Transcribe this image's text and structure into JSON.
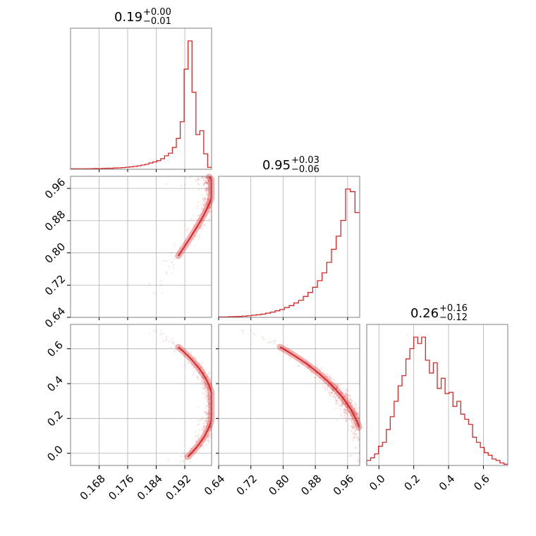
{
  "chart_data": {
    "type": "corner",
    "color": "#d62728",
    "grid": true,
    "parameters": [
      {
        "title_value": "0.19",
        "title_plus": "+0.00",
        "title_minus": "−0.01",
        "range": [
          0.16,
          0.1995
        ],
        "ticks": [
          0.168,
          0.176,
          0.184,
          0.192
        ],
        "tick_labels": [
          "0.168",
          "0.176",
          "0.184",
          "0.192"
        ]
      },
      {
        "title_value": "0.95",
        "title_plus": "+0.03",
        "title_minus": "−0.06",
        "range": [
          0.64,
          0.99
        ],
        "ticks": [
          0.64,
          0.72,
          0.8,
          0.88,
          0.96
        ],
        "tick_labels": [
          "0.64",
          "0.72",
          "0.80",
          "0.88",
          "0.96"
        ]
      },
      {
        "title_value": "0.26",
        "title_plus": "+0.16",
        "title_minus": "−0.12",
        "range": [
          -0.07,
          0.74
        ],
        "ticks": [
          0.0,
          0.2,
          0.4,
          0.6
        ],
        "tick_labels": [
          "0.0",
          "0.2",
          "0.4",
          "0.6"
        ]
      }
    ],
    "histograms": [
      {
        "param": 0,
        "values": [
          0.4,
          0.4,
          0.3,
          0.4,
          0.4,
          0.5,
          0.6,
          0.5,
          0.7,
          0.8,
          0.8,
          1.0,
          1.1,
          1.3,
          1.6,
          1.9,
          2.2,
          2.7,
          3.3,
          3.9,
          4.9,
          5.7,
          6.7,
          8.2,
          10.5,
          12.5,
          17,
          24,
          37,
          78,
          100,
          60,
          27,
          30,
          12,
          1.5
        ]
      },
      {
        "param": 1,
        "values": [
          0.3,
          0.3,
          0.5,
          0.6,
          0.7,
          0.9,
          1.2,
          1.6,
          2.0,
          2.5,
          3.2,
          4.0,
          5.0,
          6.0,
          7.5,
          9.0,
          11,
          13,
          16,
          19,
          23,
          28,
          34,
          42,
          52,
          62,
          74,
          98,
          96,
          80
        ]
      },
      {
        "param": 2,
        "values": [
          4,
          6,
          9,
          15,
          18,
          28,
          38,
          50,
          62,
          70,
          83,
          91,
          100,
          95,
          100,
          82,
          72,
          80,
          60,
          68,
          56,
          57,
          46,
          50,
          40,
          36,
          32,
          22,
          18,
          14,
          10,
          8,
          5,
          4,
          2,
          1
        ]
      }
    ],
    "scatter_pairs": [
      {
        "x_param": 0,
        "y_param": 1
      },
      {
        "x_param": 0,
        "y_param": 2
      },
      {
        "x_param": 1,
        "y_param": 2
      }
    ]
  }
}
